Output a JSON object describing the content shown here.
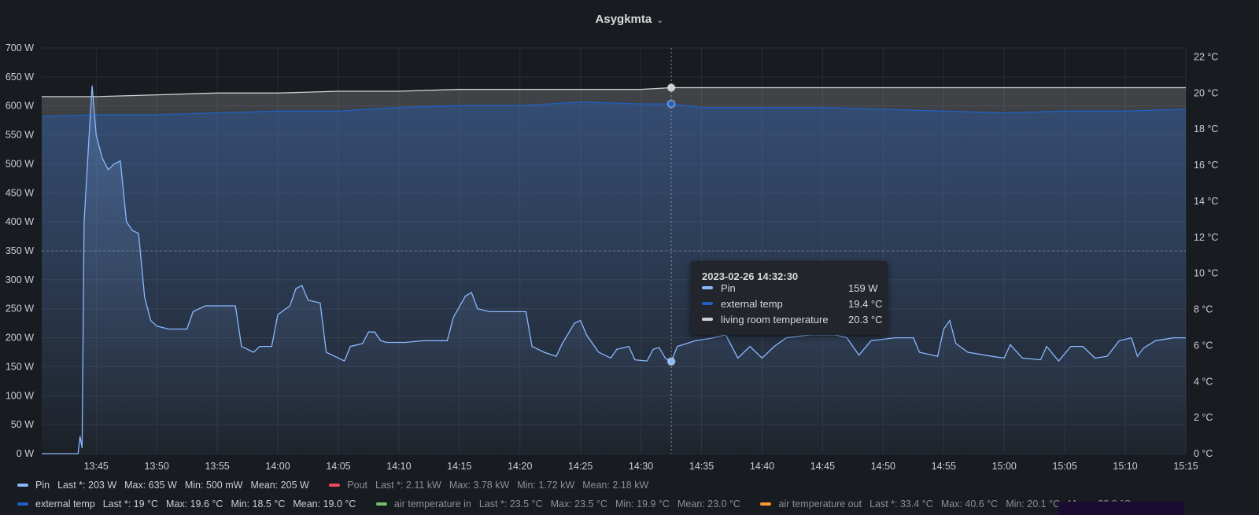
{
  "panel": {
    "title": "Asygkmta",
    "menu_icon": "chevron-down-icon"
  },
  "chart_data": {
    "type": "line",
    "x_ticks": [
      "13:45",
      "13:50",
      "13:55",
      "14:00",
      "14:05",
      "14:10",
      "14:15",
      "14:20",
      "14:25",
      "14:30",
      "14:35",
      "14:40",
      "14:45",
      "14:50",
      "14:55",
      "15:00",
      "15:05",
      "15:10",
      "15:15"
    ],
    "x_range": [
      "13:40:30",
      "15:15"
    ],
    "y_left": {
      "ticks": [
        "0 W",
        "50 W",
        "100 W",
        "150 W",
        "200 W",
        "250 W",
        "300 W",
        "350 W",
        "400 W",
        "450 W",
        "500 W",
        "550 W",
        "600 W",
        "650 W",
        "700 W"
      ],
      "range": [
        0,
        700
      ],
      "unit": "W"
    },
    "y_right": {
      "ticks": [
        "0 °C",
        "2 °C",
        "4 °C",
        "6 °C",
        "8 °C",
        "10 °C",
        "12 °C",
        "14 °C",
        "16 °C",
        "18 °C",
        "20 °C",
        "22 °C"
      ],
      "range": [
        0,
        22.5
      ],
      "unit": "°C"
    },
    "threshold": {
      "axis": "left",
      "value": 350
    },
    "series": [
      {
        "name": "Pin",
        "axis": "left",
        "color": "#8ab8ff",
        "points": [
          [
            "13:40:30",
            0
          ],
          [
            "13:43:30",
            0
          ],
          [
            "13:43:40",
            30
          ],
          [
            "13:43:50",
            10
          ],
          [
            "13:44:00",
            400
          ],
          [
            "13:44:20",
            520
          ],
          [
            "13:44:40",
            635
          ],
          [
            "13:45:00",
            550
          ],
          [
            "13:45:30",
            510
          ],
          [
            "13:46:00",
            490
          ],
          [
            "13:46:30",
            500
          ],
          [
            "13:47:00",
            505
          ],
          [
            "13:47:30",
            400
          ],
          [
            "13:48:00",
            385
          ],
          [
            "13:48:30",
            380
          ],
          [
            "13:49:00",
            270
          ],
          [
            "13:49:30",
            230
          ],
          [
            "13:50:00",
            220
          ],
          [
            "13:51:00",
            215
          ],
          [
            "13:52:30",
            215
          ],
          [
            "13:53:00",
            245
          ],
          [
            "13:54:00",
            255
          ],
          [
            "13:56:30",
            255
          ],
          [
            "13:57:00",
            185
          ],
          [
            "13:58:00",
            175
          ],
          [
            "13:58:30",
            185
          ],
          [
            "13:59:30",
            185
          ],
          [
            "14:00:00",
            240
          ],
          [
            "14:01:00",
            255
          ],
          [
            "14:01:30",
            285
          ],
          [
            "14:02:00",
            290
          ],
          [
            "14:02:30",
            265
          ],
          [
            "14:03:30",
            260
          ],
          [
            "14:04:00",
            175
          ],
          [
            "14:05:30",
            160
          ],
          [
            "14:06:00",
            185
          ],
          [
            "14:07:00",
            190
          ],
          [
            "14:07:30",
            210
          ],
          [
            "14:08:00",
            210
          ],
          [
            "14:08:30",
            195
          ],
          [
            "14:09:00",
            192
          ],
          [
            "14:10:30",
            192
          ],
          [
            "14:12:00",
            195
          ],
          [
            "14:14:00",
            195
          ],
          [
            "14:14:30",
            235
          ],
          [
            "14:15:30",
            272
          ],
          [
            "14:16:00",
            278
          ],
          [
            "14:16:30",
            250
          ],
          [
            "14:17:30",
            245
          ],
          [
            "14:19:00",
            245
          ],
          [
            "14:20:30",
            245
          ],
          [
            "14:21:00",
            185
          ],
          [
            "14:22:00",
            175
          ],
          [
            "14:23:00",
            168
          ],
          [
            "14:23:30",
            190
          ],
          [
            "14:24:30",
            225
          ],
          [
            "14:25:00",
            230
          ],
          [
            "14:25:30",
            205
          ],
          [
            "14:26:30",
            175
          ],
          [
            "14:27:30",
            165
          ],
          [
            "14:28:00",
            180
          ],
          [
            "14:29:00",
            185
          ],
          [
            "14:29:30",
            162
          ],
          [
            "14:30:30",
            160
          ],
          [
            "14:31:00",
            180
          ],
          [
            "14:31:30",
            183
          ],
          [
            "14:32:00",
            165
          ],
          [
            "14:32:30",
            159
          ],
          [
            "14:33:00",
            185
          ],
          [
            "14:34:30",
            195
          ],
          [
            "14:36:00",
            200
          ],
          [
            "14:37:00",
            205
          ],
          [
            "14:38:00",
            165
          ],
          [
            "14:39:00",
            185
          ],
          [
            "14:40:00",
            165
          ],
          [
            "14:41:00",
            185
          ],
          [
            "14:42:00",
            200
          ],
          [
            "14:44:00",
            205
          ],
          [
            "14:46:00",
            205
          ],
          [
            "14:47:00",
            200
          ],
          [
            "14:48:00",
            170
          ],
          [
            "14:49:00",
            195
          ],
          [
            "14:51:00",
            200
          ],
          [
            "14:52:30",
            200
          ],
          [
            "14:53:00",
            175
          ],
          [
            "14:54:30",
            168
          ],
          [
            "14:55:00",
            215
          ],
          [
            "14:55:30",
            230
          ],
          [
            "14:56:00",
            190
          ],
          [
            "14:57:00",
            175
          ],
          [
            "14:59:00",
            168
          ],
          [
            "15:00:00",
            165
          ],
          [
            "15:00:30",
            188
          ],
          [
            "15:01:30",
            165
          ],
          [
            "15:03:00",
            162
          ],
          [
            "15:03:30",
            185
          ],
          [
            "15:04:30",
            160
          ],
          [
            "15:05:30",
            185
          ],
          [
            "15:06:30",
            185
          ],
          [
            "15:07:30",
            165
          ],
          [
            "15:08:30",
            168
          ],
          [
            "15:09:30",
            195
          ],
          [
            "15:10:30",
            200
          ],
          [
            "15:11:00",
            168
          ],
          [
            "15:11:30",
            182
          ],
          [
            "15:12:30",
            195
          ],
          [
            "15:14:00",
            200
          ],
          [
            "15:15:00",
            200
          ]
        ]
      },
      {
        "name": "external temp",
        "axis": "right",
        "color": "#1f60c4",
        "points": [
          [
            "13:40:30",
            18.7
          ],
          [
            "13:45:00",
            18.8
          ],
          [
            "13:50:00",
            18.8
          ],
          [
            "13:55:00",
            18.9
          ],
          [
            "14:00:00",
            19.0
          ],
          [
            "14:05:00",
            19.0
          ],
          [
            "14:10:00",
            19.2
          ],
          [
            "14:15:00",
            19.3
          ],
          [
            "14:20:00",
            19.3
          ],
          [
            "14:25:00",
            19.5
          ],
          [
            "14:30:00",
            19.4
          ],
          [
            "14:32:30",
            19.4
          ],
          [
            "14:35:00",
            19.2
          ],
          [
            "14:40:00",
            19.2
          ],
          [
            "14:45:00",
            19.2
          ],
          [
            "14:50:00",
            19.1
          ],
          [
            "14:55:00",
            19.0
          ],
          [
            "15:00:00",
            18.9
          ],
          [
            "15:05:00",
            19.0
          ],
          [
            "15:10:00",
            19.0
          ],
          [
            "15:15:00",
            19.1
          ]
        ]
      },
      {
        "name": "living room temperature",
        "axis": "right",
        "color": "#d0d0d4",
        "points": [
          [
            "13:40:30",
            19.8
          ],
          [
            "13:45:00",
            19.8
          ],
          [
            "13:50:00",
            19.9
          ],
          [
            "13:55:00",
            20.0
          ],
          [
            "14:00:00",
            20.0
          ],
          [
            "14:05:00",
            20.1
          ],
          [
            "14:10:00",
            20.1
          ],
          [
            "14:15:00",
            20.2
          ],
          [
            "14:20:00",
            20.2
          ],
          [
            "14:25:00",
            20.2
          ],
          [
            "14:30:00",
            20.2
          ],
          [
            "14:32:30",
            20.3
          ],
          [
            "14:35:00",
            20.3
          ],
          [
            "14:40:00",
            20.3
          ],
          [
            "14:45:00",
            20.3
          ],
          [
            "14:50:00",
            20.3
          ],
          [
            "14:55:00",
            20.3
          ],
          [
            "15:00:00",
            20.3
          ],
          [
            "15:05:00",
            20.3
          ],
          [
            "15:10:00",
            20.3
          ],
          [
            "15:15:00",
            20.3
          ]
        ]
      }
    ],
    "hover": {
      "time": "2023-02-26 14:32:30",
      "x": "14:32:30"
    }
  },
  "tooltip": {
    "time": "2023-02-26 14:32:30",
    "rows": [
      {
        "label": "Pin",
        "value": "159 W",
        "color": "#8ab8ff"
      },
      {
        "label": "external temp",
        "value": "19.4 °C",
        "color": "#1f60c4"
      },
      {
        "label": "living room temperature",
        "value": "20.3 °C",
        "color": "#d0d0d4"
      }
    ]
  },
  "legend": {
    "rows": [
      [
        {
          "name": "Pin",
          "color": "#8ab8ff",
          "hidden": false,
          "stats": [
            "Last *: 203 W",
            "Max: 635 W",
            "Min: 500 mW",
            "Mean: 205 W"
          ]
        },
        {
          "name": "Pout",
          "color": "#f2495c",
          "hidden": true,
          "stats": [
            "Last *: 2.11 kW",
            "Max: 3.78 kW",
            "Min: 1.72 kW",
            "Mean: 2.18 kW"
          ]
        }
      ],
      [
        {
          "name": "external temp",
          "color": "#1f60c4",
          "hidden": false,
          "stats": [
            "Last *: 19 °C",
            "Max: 19.6 °C",
            "Min: 18.5 °C",
            "Mean: 19.0 °C"
          ]
        },
        {
          "name": "air temperature in",
          "color": "#73bf69",
          "hidden": true,
          "stats": [
            "Last *: 23.5 °C",
            "Max: 23.5 °C",
            "Min: 19.9 °C",
            "Mean: 23.0 °C"
          ]
        },
        {
          "name": "air temperature out",
          "color": "#ff9830",
          "hidden": true,
          "stats": [
            "Last *: 33.4 °C",
            "Max: 40.6 °C",
            "Min: 20.1 °C",
            "Mean: 32.8 °C"
          ]
        }
      ]
    ]
  }
}
